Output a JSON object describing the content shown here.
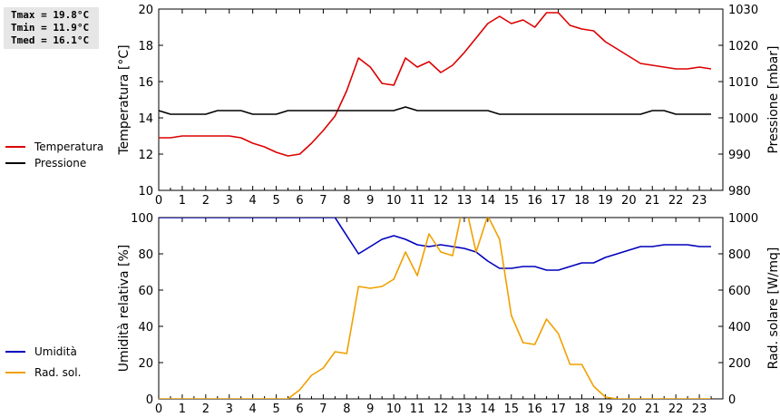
{
  "stats": {
    "tmax": "Tmax = 19.8°C",
    "tmin": "Tmin = 11.9°C",
    "tmed": "Tmed = 16.1°C"
  },
  "chart_data": [
    {
      "type": "line",
      "panel": "top",
      "grid": false,
      "legend_placement": "left",
      "x_ticks": [
        "0",
        "1",
        "2",
        "3",
        "4",
        "5",
        "6",
        "7",
        "8",
        "9",
        "10",
        "11",
        "12",
        "13",
        "14",
        "15",
        "16",
        "17",
        "18",
        "19",
        "20",
        "21",
        "22",
        "23"
      ],
      "xlim": [
        0,
        24
      ],
      "ylabel_left": "Temperatura [°C]",
      "ylabel_right": "Pressione [mbar]",
      "ylim_left": [
        10,
        20
      ],
      "ylim_right": [
        980,
        1030
      ],
      "yticks_left": [
        "10",
        "12",
        "14",
        "16",
        "18",
        "20"
      ],
      "yticks_right": [
        "980",
        "990",
        "1000",
        "1010",
        "1020",
        "1030"
      ],
      "series": [
        {
          "name": "Temperatura",
          "axis": "left",
          "color": "#dd0000",
          "x": [
            0,
            0.5,
            1,
            1.5,
            2,
            2.5,
            3,
            3.5,
            4,
            4.5,
            5,
            5.5,
            6,
            6.5,
            7,
            7.5,
            8,
            8.5,
            9,
            9.5,
            10,
            10.5,
            11,
            11.5,
            12,
            12.5,
            13,
            13.5,
            14,
            14.5,
            15,
            15.5,
            16,
            16.5,
            17,
            17.5,
            18,
            18.5,
            19,
            19.5,
            20,
            20.5,
            21,
            21.5,
            22,
            22.5,
            23,
            23.5
          ],
          "y": [
            12.9,
            12.9,
            13.0,
            13.0,
            13.0,
            13.0,
            13.0,
            12.9,
            12.6,
            12.4,
            12.1,
            11.9,
            12.0,
            12.6,
            13.3,
            14.1,
            15.5,
            17.3,
            16.8,
            15.9,
            15.8,
            17.3,
            16.8,
            17.1,
            16.5,
            16.9,
            17.6,
            18.4,
            19.2,
            19.6,
            19.2,
            19.4,
            19.0,
            19.8,
            19.8,
            19.1,
            18.9,
            18.8,
            18.2,
            17.8,
            17.4,
            17.0,
            16.9,
            16.8,
            16.7,
            16.7,
            16.8,
            16.7
          ]
        },
        {
          "name": "Pressione",
          "axis": "right",
          "color": "#000000",
          "x": [
            0,
            0.5,
            1,
            1.5,
            2,
            2.5,
            3,
            3.5,
            4,
            4.5,
            5,
            5.5,
            6,
            6.5,
            7,
            7.5,
            8,
            8.5,
            9,
            9.5,
            10,
            10.5,
            11,
            11.5,
            12,
            12.5,
            13,
            13.5,
            14,
            14.5,
            15,
            15.5,
            16,
            16.5,
            17,
            17.5,
            18,
            18.5,
            19,
            19.5,
            20,
            20.5,
            21,
            21.5,
            22,
            22.5,
            23,
            23.5
          ],
          "y": [
            1002,
            1001,
            1001,
            1001,
            1001,
            1002,
            1002,
            1002,
            1001,
            1001,
            1001,
            1002,
            1002,
            1002,
            1002,
            1002,
            1002,
            1002,
            1002,
            1002,
            1002,
            1003,
            1002,
            1002,
            1002,
            1002,
            1002,
            1002,
            1002,
            1001,
            1001,
            1001,
            1001,
            1001,
            1001,
            1001,
            1001,
            1001,
            1001,
            1001,
            1001,
            1001,
            1002,
            1002,
            1001,
            1001,
            1001,
            1001
          ]
        }
      ]
    },
    {
      "type": "line",
      "panel": "bottom",
      "grid": false,
      "legend_placement": "left",
      "x_ticks": [
        "0",
        "1",
        "2",
        "3",
        "4",
        "5",
        "6",
        "7",
        "8",
        "9",
        "10",
        "11",
        "12",
        "13",
        "14",
        "15",
        "16",
        "17",
        "18",
        "19",
        "20",
        "21",
        "22",
        "23"
      ],
      "xlim": [
        0,
        24
      ],
      "ylabel_left": "Umidità relativa [%]",
      "ylabel_right": "Rad. solare [W/mq]",
      "ylim_left": [
        0,
        100
      ],
      "ylim_right": [
        0,
        1000
      ],
      "yticks_left": [
        "0",
        "20",
        "40",
        "60",
        "80",
        "100"
      ],
      "yticks_right": [
        "0",
        "200",
        "400",
        "600",
        "800",
        "1000"
      ],
      "series": [
        {
          "name": "Umidità",
          "axis": "left",
          "color": "#0000bb",
          "x": [
            0,
            7.5,
            8,
            8.5,
            9,
            9.5,
            10,
            10.5,
            11,
            11.5,
            12,
            12.5,
            13,
            13.5,
            14,
            14.5,
            15,
            15.5,
            16,
            16.5,
            17,
            17.5,
            18,
            18.5,
            19,
            19.5,
            20,
            20.5,
            21,
            21.5,
            22,
            22.5,
            23,
            23.5
          ],
          "y": [
            100,
            100,
            90,
            80,
            84,
            88,
            90,
            88,
            85,
            84,
            85,
            84,
            83,
            81,
            76,
            72,
            72,
            73,
            73,
            71,
            71,
            73,
            75,
            75,
            78,
            80,
            82,
            84,
            84,
            85,
            85,
            85,
            84,
            84
          ]
        },
        {
          "name": "Rad. sol.",
          "axis": "right",
          "color": "#f0a000",
          "x": [
            0,
            0.5,
            1,
            1.5,
            2,
            2.5,
            3,
            3.5,
            4,
            4.5,
            5,
            5.5,
            6,
            6.5,
            7,
            7.5,
            8,
            8.5,
            9,
            9.5,
            10,
            10.5,
            11,
            11.5,
            12,
            12.5,
            13,
            13.5,
            14,
            14.5,
            15,
            15.5,
            16,
            16.5,
            17,
            17.5,
            18,
            18.5,
            19,
            19.5,
            20,
            20.5,
            21,
            21.5,
            22,
            22.5,
            23,
            23.5
          ],
          "y": [
            0,
            0,
            0,
            0,
            0,
            0,
            0,
            0,
            0,
            0,
            0,
            0,
            50,
            130,
            170,
            260,
            250,
            620,
            610,
            620,
            660,
            810,
            680,
            910,
            810,
            790,
            1100,
            810,
            1010,
            880,
            460,
            310,
            300,
            440,
            360,
            190,
            190,
            70,
            10,
            0,
            0,
            0,
            0,
            0,
            0,
            0,
            0,
            0
          ]
        }
      ]
    }
  ]
}
